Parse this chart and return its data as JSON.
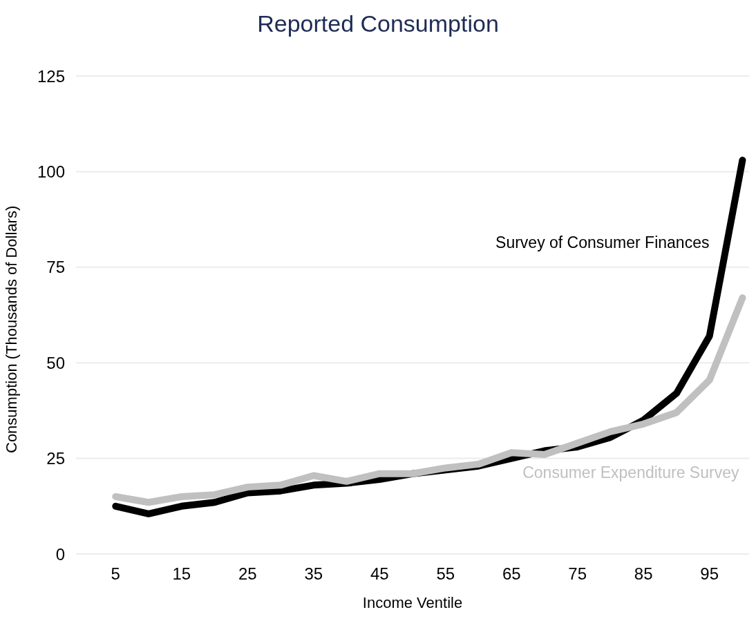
{
  "chart_data": {
    "type": "line",
    "title": "Reported Consumption",
    "xlabel": "Income Ventile",
    "ylabel": "Consumption (Thousands of Dollars)",
    "x": [
      5,
      10,
      15,
      20,
      25,
      30,
      35,
      40,
      45,
      50,
      55,
      60,
      65,
      70,
      75,
      80,
      85,
      90,
      95,
      100
    ],
    "series": [
      {
        "name": "Survey of Consumer Finances",
        "color": "#000000",
        "values": [
          12.5,
          10.5,
          12.5,
          13.5,
          16,
          16.5,
          18,
          18.5,
          19.5,
          21,
          22,
          23,
          25,
          27,
          28,
          30.5,
          35,
          42,
          57,
          103
        ]
      },
      {
        "name": "Consumer Expenditure Survey",
        "color": "#c0c0c0",
        "values": [
          15,
          13.5,
          15,
          15.5,
          17.5,
          18,
          20.5,
          19,
          21,
          21,
          22.5,
          23.5,
          26.5,
          26,
          29,
          32,
          34,
          37,
          45.5,
          67
        ]
      }
    ],
    "xlim": [
      -1,
      101
    ],
    "xticks": [
      5,
      15,
      25,
      35,
      45,
      55,
      65,
      75,
      85,
      95
    ],
    "ylim": [
      0,
      125
    ],
    "yticks": [
      0,
      25,
      50,
      75,
      100,
      125
    ],
    "grid": "y",
    "legend": false,
    "marker": "none",
    "line_style": "solid"
  }
}
